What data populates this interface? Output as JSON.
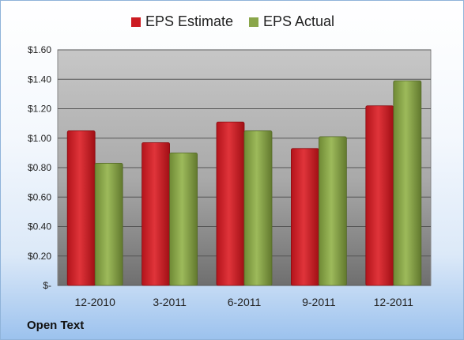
{
  "legend": {
    "estimate_label": "EPS Estimate",
    "actual_label": "EPS Actual"
  },
  "company": "Open Text",
  "colors": {
    "estimate": "#cc1b22",
    "actual": "#8aa64a"
  },
  "chart_data": {
    "type": "bar",
    "categories": [
      "12-2010",
      "3-2011",
      "6-2011",
      "9-2011",
      "12-2011"
    ],
    "series": [
      {
        "name": "EPS Estimate",
        "values": [
          1.05,
          0.97,
          1.11,
          0.93,
          1.22
        ]
      },
      {
        "name": "EPS Actual",
        "values": [
          0.83,
          0.9,
          1.05,
          1.01,
          1.39
        ]
      }
    ],
    "ylim": [
      0,
      1.6
    ],
    "yticks": [
      0,
      0.2,
      0.4,
      0.6,
      0.8,
      1.0,
      1.2,
      1.4,
      1.6
    ],
    "ytick_labels": [
      "$-",
      "$0.20",
      "$0.40",
      "$0.60",
      "$0.80",
      "$1.00",
      "$1.20",
      "$1.40",
      "$1.60"
    ],
    "grid": true,
    "legend_position": "top"
  }
}
